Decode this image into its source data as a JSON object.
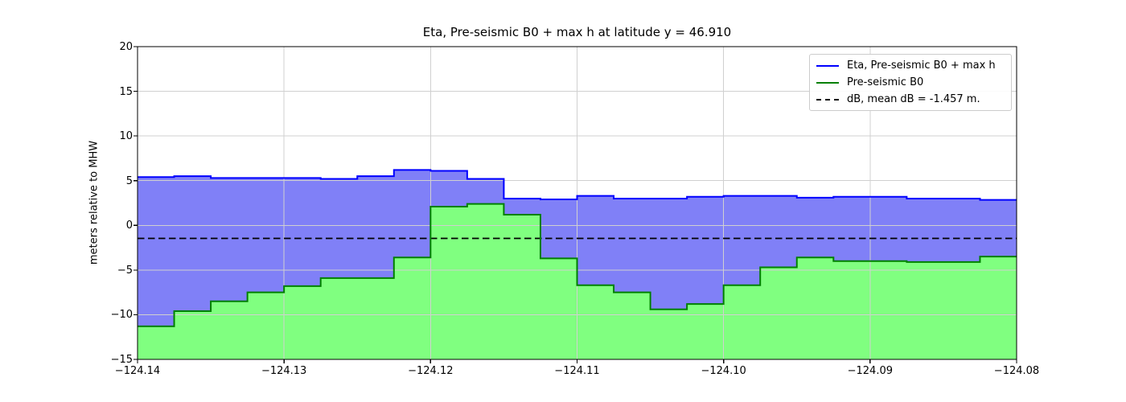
{
  "figure": {
    "title": "Eta, Pre-seismic B0 + max h at latitude y = 46.910",
    "ylabel": "meters relative to MHW"
  },
  "legend": {
    "items": [
      {
        "label": "Eta, Pre-seismic B0 + max h",
        "color": "#0000ff",
        "style": "solid"
      },
      {
        "label": "Pre-seismic B0",
        "color": "#008000",
        "style": "solid"
      },
      {
        "label": "dB, mean dB = -1.457 m.",
        "color": "#000000",
        "style": "dashed"
      }
    ]
  },
  "chart_data": {
    "type": "area",
    "step": true,
    "title": "Eta, Pre-seismic B0 + max h at latitude y = 46.910",
    "xlabel": "",
    "ylabel": "meters relative to MHW",
    "xlim": [
      -124.14,
      -124.08
    ],
    "ylim": [
      -15,
      20
    ],
    "grid": true,
    "legend_position": "upper right",
    "x_ticks": [
      -124.14,
      -124.13,
      -124.12,
      -124.11,
      -124.1,
      -124.09,
      -124.08
    ],
    "x_tick_labels": [
      "−124.14",
      "−124.13",
      "−124.12",
      "−124.11",
      "−124.10",
      "−124.09",
      "−124.08"
    ],
    "y_ticks": [
      20,
      15,
      10,
      5,
      0,
      -5,
      -10,
      -15
    ],
    "y_tick_labels": [
      "20",
      "15",
      "10",
      "5",
      "0",
      "−5",
      "−10",
      "−15"
    ],
    "cell_edges": [
      -124.14,
      -124.1375,
      -124.135,
      -124.1325,
      -124.13,
      -124.1275,
      -124.125,
      -124.1225,
      -124.12,
      -124.1175,
      -124.115,
      -124.1125,
      -124.11,
      -124.1075,
      -124.105,
      -124.1025,
      -124.1,
      -124.0975,
      -124.095,
      -124.0925,
      -124.09,
      -124.0875,
      -124.085,
      -124.0825,
      -124.08
    ],
    "series": [
      {
        "name": "Eta, Pre-seismic B0 + max h",
        "line_color": "#0000ff",
        "fill_color": "#8080f7",
        "values": [
          5.4,
          5.5,
          5.3,
          5.3,
          5.3,
          5.2,
          5.5,
          6.2,
          6.1,
          5.2,
          3.0,
          2.9,
          3.3,
          3.0,
          3.0,
          3.2,
          3.3,
          3.3,
          3.1,
          3.2,
          3.2,
          3.0,
          3.0,
          2.85
        ]
      },
      {
        "name": "Pre-seismic B0",
        "line_color": "#008000",
        "fill_color": "#80ff80",
        "values": [
          -11.3,
          -9.6,
          -8.5,
          -7.5,
          -6.8,
          -5.9,
          -5.9,
          -3.6,
          2.1,
          2.4,
          1.2,
          -3.7,
          -6.7,
          -7.5,
          -9.4,
          -8.8,
          -6.7,
          -4.7,
          -3.6,
          -4.0,
          -4.0,
          -4.1,
          -4.1,
          -3.5
        ]
      }
    ],
    "dashed_line": {
      "name": "dB, mean dB = -1.457 m.",
      "value": -1.457,
      "color": "#000000"
    },
    "grid_color": "#d0d0d0"
  }
}
